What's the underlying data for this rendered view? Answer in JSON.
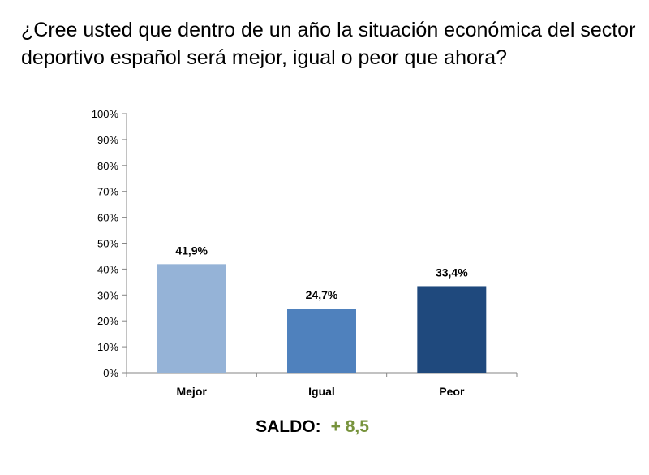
{
  "question": "¿Cree usted que dentro de un año la situación económica del sector deportivo español será mejor, igual o peor que ahora?",
  "chart_data": {
    "type": "bar",
    "categories": [
      "Mejor",
      "Igual",
      "Peor"
    ],
    "values": [
      41.9,
      24.7,
      33.4
    ],
    "data_labels": [
      "41,9%",
      "24,7%",
      "33,4%"
    ],
    "colors": [
      "#95b3d7",
      "#4f81bd",
      "#1f497d"
    ],
    "ylim": [
      0,
      100
    ],
    "y_ticks": [
      0,
      10,
      20,
      30,
      40,
      50,
      60,
      70,
      80,
      90,
      100
    ],
    "y_tick_labels": [
      "0%",
      "10%",
      "20%",
      "30%",
      "40%",
      "50%",
      "60%",
      "70%",
      "80%",
      "90%",
      "100%"
    ],
    "grid": false,
    "legend": "none",
    "title": "",
    "xlabel": "",
    "ylabel": ""
  },
  "saldo": {
    "label": "SALDO:",
    "value": "+ 8,5",
    "value_color": "#77933c"
  }
}
